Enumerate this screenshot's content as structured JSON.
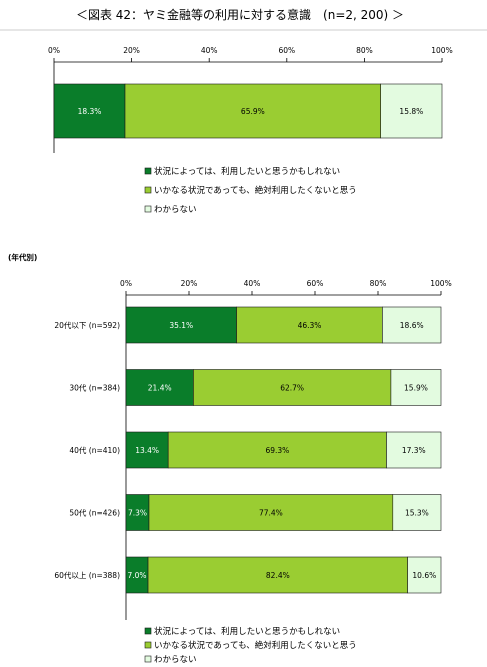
{
  "title": "＜図表 42：ヤミ金融等の利用に対する意識　(n=2, 200) ＞",
  "subheading": "(年代別)",
  "legend": [
    "状況によっては、利用したいと思うかもしれない",
    "いかなる状況であっても、絶対利用したくないと思う",
    "わからない"
  ],
  "colors": [
    "#0a7d2a",
    "#9acd32",
    "#e3fbe0"
  ],
  "chart_data": [
    {
      "type": "bar",
      "orientation": "horizontal",
      "stacked": true,
      "xlim": [
        0,
        100
      ],
      "x_ticks": [
        "0%",
        "20%",
        "40%",
        "60%",
        "80%",
        "100%"
      ],
      "categories": [
        ""
      ],
      "series": [
        {
          "name": "状況によっては、利用したいと思うかもしれない",
          "values": [
            18.3
          ],
          "labels": [
            "18.3%"
          ]
        },
        {
          "name": "いかなる状況であっても、絶対利用したくないと思う",
          "values": [
            65.9
          ],
          "labels": [
            "65.9%"
          ]
        },
        {
          "name": "わからない",
          "values": [
            15.8
          ],
          "labels": [
            "15.8%"
          ]
        }
      ]
    },
    {
      "type": "bar",
      "orientation": "horizontal",
      "stacked": true,
      "xlim": [
        0,
        100
      ],
      "x_ticks": [
        "0%",
        "20%",
        "40%",
        "60%",
        "80%",
        "100%"
      ],
      "categories": [
        "20代以下 (n=592)",
        "30代 (n=384)",
        "40代 (n=410)",
        "50代 (n=426)",
        "60代以上 (n=388)"
      ],
      "series": [
        {
          "name": "状況によっては、利用したいと思うかもしれない",
          "values": [
            35.1,
            21.4,
            13.4,
            7.3,
            7.0
          ],
          "labels": [
            "35.1%",
            "21.4%",
            "13.4%",
            "7.3%",
            "7.0%"
          ]
        },
        {
          "name": "いかなる状況であっても、絶対利用したくないと思う",
          "values": [
            46.3,
            62.7,
            69.3,
            77.4,
            82.4
          ],
          "labels": [
            "46.3%",
            "62.7%",
            "69.3%",
            "77.4%",
            "82.4%"
          ]
        },
        {
          "name": "わからない",
          "values": [
            18.6,
            15.9,
            17.3,
            15.3,
            10.6
          ],
          "labels": [
            "18.6%",
            "15.9%",
            "17.3%",
            "15.3%",
            "10.6%"
          ]
        }
      ]
    }
  ]
}
